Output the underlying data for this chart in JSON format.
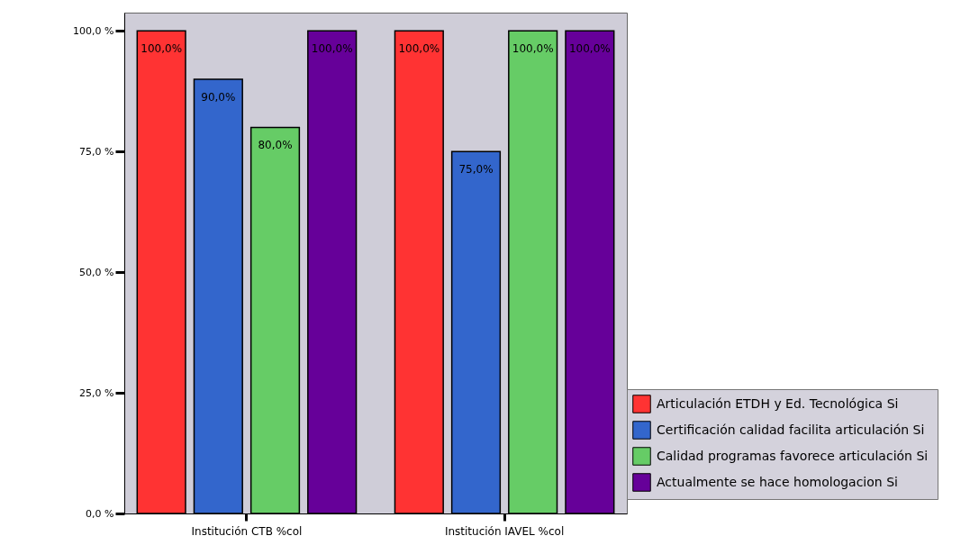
{
  "chart_data": {
    "type": "bar",
    "categories": [
      "Institución CTB %col",
      "Institución IAVEL %col"
    ],
    "series": [
      {
        "name": "Articulación ETDH y Ed. Tecnológica Si",
        "color": "#ff3333",
        "values": [
          100,
          100
        ],
        "value_labels": [
          "100,0%",
          "100,0%"
        ]
      },
      {
        "name": "Certificación calidad facilita articulación Si",
        "color": "#3366cc",
        "values": [
          90,
          75
        ],
        "value_labels": [
          "90,0%",
          "75,0%"
        ]
      },
      {
        "name": "Calidad  programas favorece articulación Si",
        "color": "#66cc66",
        "values": [
          80,
          100
        ],
        "value_labels": [
          "80,0%",
          "100,0%"
        ]
      },
      {
        "name": "Actualmente se hace homologacion Si",
        "color": "#660099",
        "values": [
          100,
          100
        ],
        "value_labels": [
          "100,0%",
          "100,0%"
        ]
      }
    ],
    "ylim": [
      0,
      103.8
    ],
    "yticks": [
      {
        "value": 0,
        "label": "0,0 %"
      },
      {
        "value": 25,
        "label": "25,0 %"
      },
      {
        "value": 50,
        "label": "50,0 %"
      },
      {
        "value": 75,
        "label": "75,0 %"
      },
      {
        "value": 100,
        "label": "100,0 %"
      }
    ],
    "legend": "bottom right"
  }
}
